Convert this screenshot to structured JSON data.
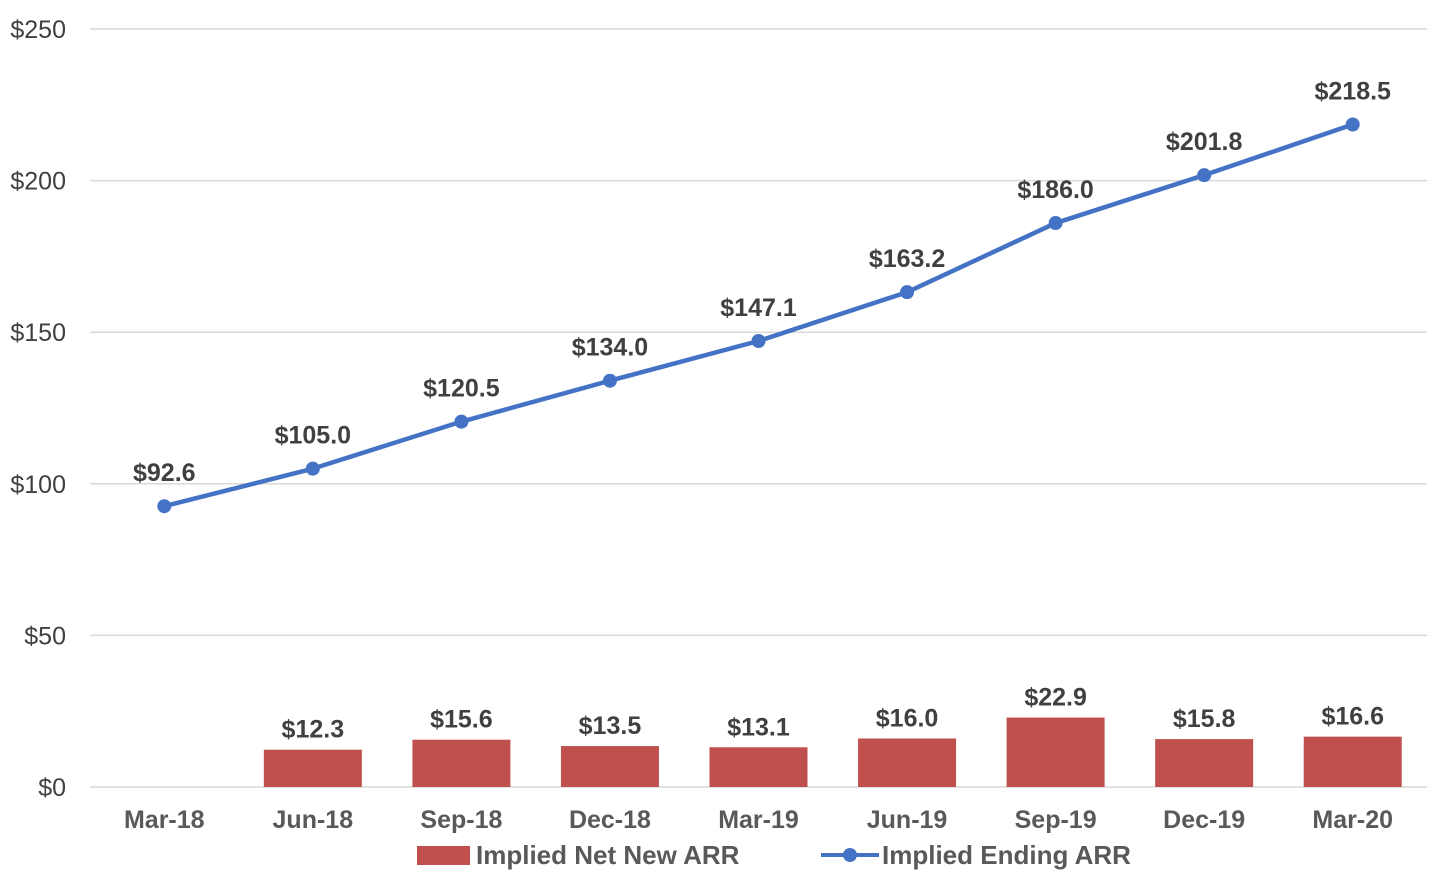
{
  "chart_data": {
    "type": "bar",
    "categories": [
      "Mar-18",
      "Jun-18",
      "Sep-18",
      "Dec-18",
      "Mar-19",
      "Jun-19",
      "Sep-19",
      "Dec-19",
      "Mar-20"
    ],
    "y_ticks": [
      "$0",
      "$50",
      "$100",
      "$150",
      "$200",
      "$250"
    ],
    "y_tick_values": [
      0,
      50,
      100,
      150,
      200,
      250
    ],
    "ylim": [
      0,
      250
    ],
    "grid": true,
    "legend_position": "bottom",
    "series": [
      {
        "name": "Implied Net New ARR",
        "type": "bar",
        "color": "#c0504d",
        "values": [
          null,
          12.3,
          15.6,
          13.5,
          13.1,
          16.0,
          22.9,
          15.8,
          16.6
        ],
        "labels": [
          "",
          "$12.3",
          "$15.6",
          "$13.5",
          "$13.1",
          "$16.0",
          "$22.9",
          "$15.8",
          "$16.6"
        ]
      },
      {
        "name": "Implied Ending ARR",
        "type": "line",
        "color": "#4472c4",
        "values": [
          92.6,
          105.0,
          120.5,
          134.0,
          147.1,
          163.2,
          186.0,
          201.8,
          218.5
        ],
        "labels": [
          "$92.6",
          "$105.0",
          "$120.5",
          "$134.0",
          "$147.1",
          "$163.2",
          "$186.0",
          "$201.8",
          "$218.5"
        ]
      }
    ]
  }
}
